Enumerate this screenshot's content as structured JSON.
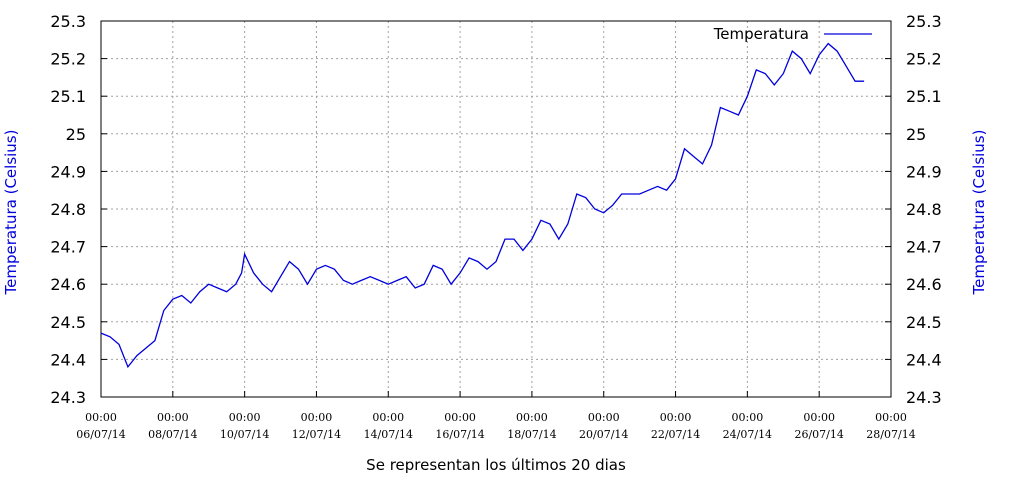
{
  "chart_data": {
    "type": "line",
    "title": "",
    "xlabel": "Se representan los últimos 20 dias",
    "ylabel_left": "Temperatura (Celsius)",
    "ylabel_right": "Temperatura (Celsius)",
    "ylim": [
      24.3,
      25.3
    ],
    "yticks": [
      "24.3",
      "24.4",
      "24.5",
      "24.6",
      "24.7",
      "24.8",
      "24.9",
      "25",
      "25.1",
      "25.2",
      "25.3"
    ],
    "xlim": [
      "06/07/14 00:00",
      "28/07/14 00:00"
    ],
    "xticks": [
      {
        "time": "00:00",
        "date": "06/07/14"
      },
      {
        "time": "00:00",
        "date": "08/07/14"
      },
      {
        "time": "00:00",
        "date": "10/07/14"
      },
      {
        "time": "00:00",
        "date": "12/07/14"
      },
      {
        "time": "00:00",
        "date": "14/07/14"
      },
      {
        "time": "00:00",
        "date": "16/07/14"
      },
      {
        "time": "00:00",
        "date": "18/07/14"
      },
      {
        "time": "00:00",
        "date": "20/07/14"
      },
      {
        "time": "00:00",
        "date": "22/07/14"
      },
      {
        "time": "00:00",
        "date": "24/07/14"
      },
      {
        "time": "00:00",
        "date": "26/07/14"
      },
      {
        "time": "00:00",
        "date": "28/07/14"
      }
    ],
    "grid": true,
    "legend_position": "top-right",
    "series": [
      {
        "name": "Temperatura",
        "color": "#0000dd",
        "x": [
          "2014-07-06 00:00",
          "2014-07-06 06:00",
          "2014-07-06 12:00",
          "2014-07-06 18:00",
          "2014-07-07 00:00",
          "2014-07-07 06:00",
          "2014-07-07 12:00",
          "2014-07-07 18:00",
          "2014-07-08 00:00",
          "2014-07-08 06:00",
          "2014-07-08 12:00",
          "2014-07-08 18:00",
          "2014-07-09 00:00",
          "2014-07-09 06:00",
          "2014-07-09 12:00",
          "2014-07-09 18:00",
          "2014-07-09 22:00",
          "2014-07-10 00:00",
          "2014-07-10 06:00",
          "2014-07-10 12:00",
          "2014-07-10 18:00",
          "2014-07-11 00:00",
          "2014-07-11 06:00",
          "2014-07-11 12:00",
          "2014-07-11 18:00",
          "2014-07-12 00:00",
          "2014-07-12 06:00",
          "2014-07-12 12:00",
          "2014-07-12 18:00",
          "2014-07-13 00:00",
          "2014-07-13 06:00",
          "2014-07-13 12:00",
          "2014-07-13 18:00",
          "2014-07-14 00:00",
          "2014-07-14 06:00",
          "2014-07-14 12:00",
          "2014-07-14 18:00",
          "2014-07-15 00:00",
          "2014-07-15 06:00",
          "2014-07-15 12:00",
          "2014-07-15 18:00",
          "2014-07-16 00:00",
          "2014-07-16 06:00",
          "2014-07-16 12:00",
          "2014-07-16 18:00",
          "2014-07-17 00:00",
          "2014-07-17 06:00",
          "2014-07-17 12:00",
          "2014-07-17 18:00",
          "2014-07-18 00:00",
          "2014-07-18 06:00",
          "2014-07-18 12:00",
          "2014-07-18 18:00",
          "2014-07-19 00:00",
          "2014-07-19 06:00",
          "2014-07-19 12:00",
          "2014-07-19 18:00",
          "2014-07-20 00:00",
          "2014-07-20 06:00",
          "2014-07-20 12:00",
          "2014-07-20 18:00",
          "2014-07-21 00:00",
          "2014-07-21 06:00",
          "2014-07-21 12:00",
          "2014-07-21 18:00",
          "2014-07-22 00:00",
          "2014-07-22 06:00",
          "2014-07-22 12:00",
          "2014-07-22 18:00",
          "2014-07-23 00:00",
          "2014-07-23 06:00",
          "2014-07-23 12:00",
          "2014-07-23 18:00",
          "2014-07-24 00:00",
          "2014-07-24 06:00",
          "2014-07-24 12:00",
          "2014-07-24 18:00",
          "2014-07-25 00:00",
          "2014-07-25 06:00",
          "2014-07-25 12:00",
          "2014-07-25 18:00",
          "2014-07-26 00:00",
          "2014-07-26 06:00",
          "2014-07-26 12:00",
          "2014-07-26 18:00",
          "2014-07-27 00:00",
          "2014-07-27 06:00"
        ],
        "y": [
          24.47,
          24.46,
          24.44,
          24.38,
          24.41,
          24.43,
          24.45,
          24.53,
          24.56,
          24.57,
          24.55,
          24.58,
          24.6,
          24.59,
          24.58,
          24.6,
          24.63,
          24.68,
          24.63,
          24.6,
          24.58,
          24.62,
          24.66,
          24.64,
          24.6,
          24.64,
          24.65,
          24.64,
          24.61,
          24.6,
          24.61,
          24.62,
          24.61,
          24.6,
          24.61,
          24.62,
          24.59,
          24.6,
          24.65,
          24.64,
          24.6,
          24.63,
          24.67,
          24.66,
          24.64,
          24.66,
          24.72,
          24.72,
          24.69,
          24.72,
          24.77,
          24.76,
          24.72,
          24.76,
          24.84,
          24.83,
          24.8,
          24.79,
          24.81,
          24.84,
          24.84,
          24.84,
          24.85,
          24.86,
          24.85,
          24.88,
          24.96,
          24.94,
          24.92,
          24.97,
          25.07,
          25.06,
          25.05,
          25.1,
          25.17,
          25.16,
          25.13,
          25.16,
          25.22,
          25.2,
          25.16,
          25.21,
          25.24,
          25.22,
          25.18,
          25.14,
          25.14
        ]
      }
    ]
  }
}
